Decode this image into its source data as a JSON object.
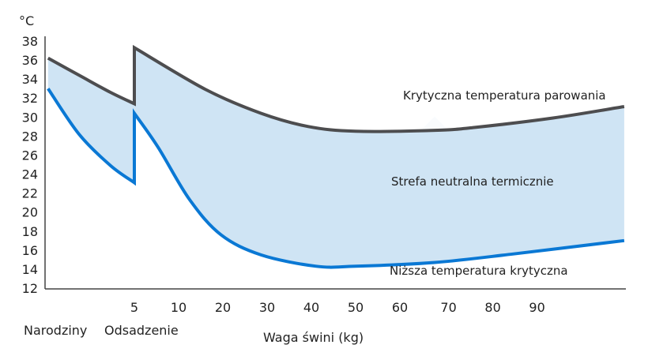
{
  "chart_data": {
    "type": "area",
    "title": "",
    "y_unit_label": "°C",
    "xlabel": "Waga świni (kg)",
    "ylabel": "°C",
    "ylim": [
      12,
      38
    ],
    "yticks": [
      "38",
      "36",
      "34",
      "32",
      "30",
      "28",
      "26",
      "24",
      "22",
      "20",
      "18",
      "16",
      "14",
      "12"
    ],
    "ytick_values": [
      38,
      36,
      34,
      32,
      30,
      28,
      26,
      24,
      22,
      20,
      18,
      16,
      14,
      12
    ],
    "x_note": "x values given as axis position: 5 kg = 1, 10 kg = 2, ... 90 kg = 10; birth ≈ -0.95",
    "xticks": [
      {
        "label": "5",
        "pos": 1
      },
      {
        "label": "10",
        "pos": 2
      },
      {
        "label": "20",
        "pos": 3
      },
      {
        "label": "30",
        "pos": 4
      },
      {
        "label": "40",
        "pos": 5
      },
      {
        "label": "50",
        "pos": 6
      },
      {
        "label": "60",
        "pos": 7
      },
      {
        "label": "70",
        "pos": 8.1
      },
      {
        "label": "80",
        "pos": 9.1
      },
      {
        "label": "90",
        "pos": 10.1
      }
    ],
    "x_range": [
      -1.02,
      12.07
    ],
    "stage_labels": [
      {
        "label": "Narodziny"
      },
      {
        "label": "Odsadzenie"
      }
    ],
    "series": [
      {
        "name": "Krytyczna temperatura parowania",
        "color": "#4d4d4f",
        "segments": [
          [
            [
              -0.95,
              36.2
            ],
            [
              -0.25,
              34.4
            ],
            [
              0.46,
              32.6
            ],
            [
              1.0,
              31.4
            ]
          ],
          [
            [
              1.0,
              37.3
            ],
            [
              2.61,
              32.9
            ],
            [
              3.86,
              30.4
            ],
            [
              4.93,
              29.0
            ],
            [
              6.0,
              28.5
            ],
            [
              7.79,
              28.6
            ],
            [
              8.68,
              28.9
            ],
            [
              10.46,
              29.9
            ],
            [
              12.07,
              31.1
            ]
          ]
        ]
      },
      {
        "name": "Niższa temperatura krytyczna",
        "color": "#0a78d4",
        "segments": [
          [
            [
              -0.95,
              33.0
            ],
            [
              -0.25,
              28.2
            ],
            [
              0.46,
              24.9
            ],
            [
              1.0,
              23.1
            ]
          ],
          [
            [
              1.0,
              30.4
            ],
            [
              1.54,
              26.8
            ],
            [
              2.25,
              21.3
            ],
            [
              2.96,
              17.6
            ],
            [
              3.86,
              15.5
            ],
            [
              5.11,
              14.3
            ],
            [
              6.0,
              14.3
            ],
            [
              7.79,
              14.7
            ],
            [
              9.57,
              15.6
            ],
            [
              12.07,
              17.0
            ]
          ]
        ]
      }
    ],
    "band": {
      "name": "Strefa neutralna termicznie",
      "color": "#cfe4f4"
    },
    "annotations": {
      "upper": "Krytyczna temperatura parowania",
      "band": "Strefa neutralna termicznie",
      "lower": "Niższa temperatura krytyczna"
    },
    "watermark_logo": "3",
    "grid": false,
    "legend": "none"
  }
}
